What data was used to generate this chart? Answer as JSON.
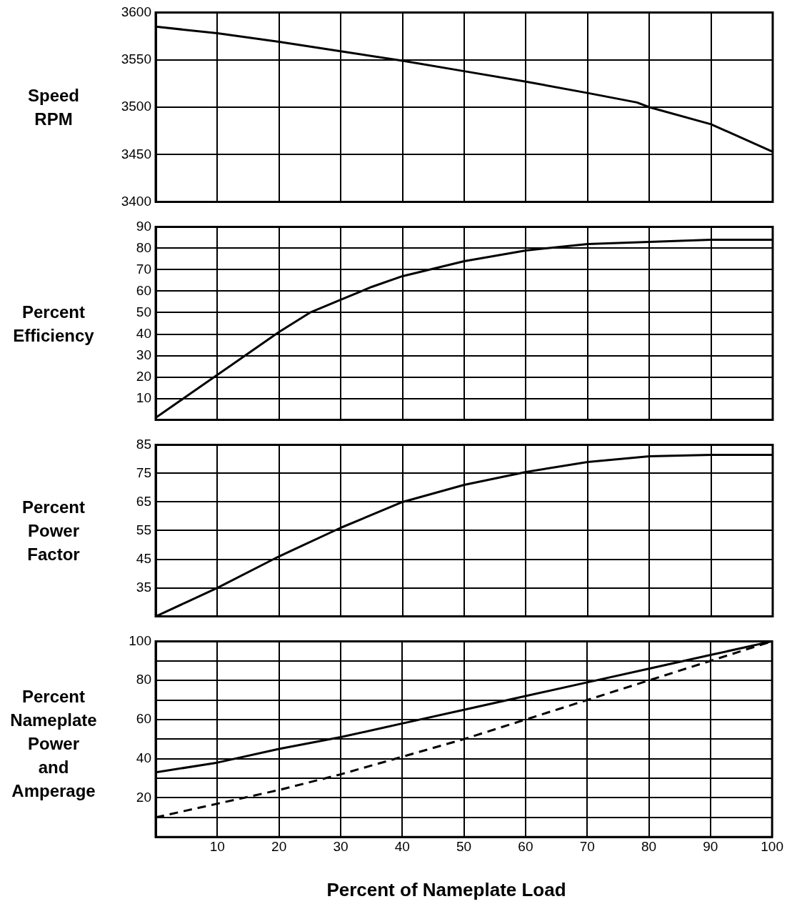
{
  "chart_data": [
    {
      "type": "line",
      "ylabel": "Speed RPM",
      "x": [
        0,
        10,
        20,
        30,
        40,
        50,
        60,
        70,
        78,
        80,
        90,
        100
      ],
      "series": [
        {
          "color": "#000000",
          "values": [
            3585,
            3578,
            3569,
            3559,
            3549,
            3538,
            3527,
            3515,
            3505,
            3500,
            3482,
            3453
          ]
        }
      ],
      "xlim": [
        0,
        100
      ],
      "xticks": [
        10,
        20,
        30,
        40,
        50,
        60,
        70,
        80,
        90,
        100
      ],
      "ylim": [
        3400,
        3600
      ],
      "yticks": [
        3400,
        3450,
        3500,
        3550,
        3600
      ],
      "grid": true,
      "tick_labels": "y",
      "marker": "none"
    },
    {
      "type": "line",
      "ylabel": "Percent Efficiency",
      "x": [
        0,
        5,
        10,
        15,
        20,
        25,
        30,
        35,
        40,
        50,
        60,
        70,
        80,
        90,
        100
      ],
      "series": [
        {
          "color": "#000000",
          "values": [
            1,
            11,
            21,
            31,
            41,
            50,
            56,
            62,
            67,
            74,
            79,
            82,
            83,
            84,
            84
          ]
        }
      ],
      "xlim": [
        0,
        100
      ],
      "xticks": [
        10,
        20,
        30,
        40,
        50,
        60,
        70,
        80,
        90,
        100
      ],
      "ylim": [
        0,
        90
      ],
      "yticks": [
        10,
        20,
        30,
        40,
        50,
        60,
        70,
        80,
        90
      ],
      "grid": true,
      "tick_labels": "y",
      "marker": "none"
    },
    {
      "type": "line",
      "ylabel": "Percent Power Factor",
      "x": [
        0,
        5,
        10,
        20,
        30,
        40,
        50,
        60,
        70,
        80,
        90,
        100
      ],
      "series": [
        {
          "color": "#000000",
          "values": [
            25,
            30,
            35,
            46,
            56,
            65,
            71,
            75.5,
            79,
            81,
            81.5,
            81.5
          ]
        }
      ],
      "xlim": [
        0,
        100
      ],
      "xticks": [
        10,
        20,
        30,
        40,
        50,
        60,
        70,
        80,
        90,
        100
      ],
      "ylim": [
        25,
        85
      ],
      "yticks": [
        35,
        45,
        55,
        65,
        75,
        85
      ],
      "grid": true,
      "tick_labels": "y",
      "marker": "none"
    },
    {
      "type": "line",
      "ylabel": "Percent Nameplate Power and Amperage",
      "xlabel": "Percent of Nameplate Load",
      "x": [
        0,
        10,
        20,
        30,
        40,
        50,
        60,
        70,
        80,
        90,
        100
      ],
      "series": [
        {
          "color": "#000000",
          "line_style": "solid",
          "values": [
            33,
            38,
            45,
            51,
            58,
            65,
            72,
            79,
            86,
            93,
            100
          ]
        },
        {
          "color": "#000000",
          "line_style": "dashed",
          "values": [
            10,
            17,
            24,
            32,
            41,
            50,
            60,
            70,
            80,
            90,
            100
          ]
        }
      ],
      "xlim": [
        0,
        100
      ],
      "xticks": [
        10,
        20,
        30,
        40,
        50,
        60,
        70,
        80,
        90,
        100
      ],
      "ylim": [
        0,
        100
      ],
      "yticks": [
        {
          "value": 10,
          "label": null
        },
        20,
        {
          "value": 30,
          "label": null
        },
        40,
        {
          "value": 50,
          "label": null
        },
        60,
        {
          "value": 70,
          "label": null
        },
        80,
        {
          "value": 90,
          "label": null
        },
        100
      ],
      "grid": true,
      "marker": "none"
    }
  ]
}
